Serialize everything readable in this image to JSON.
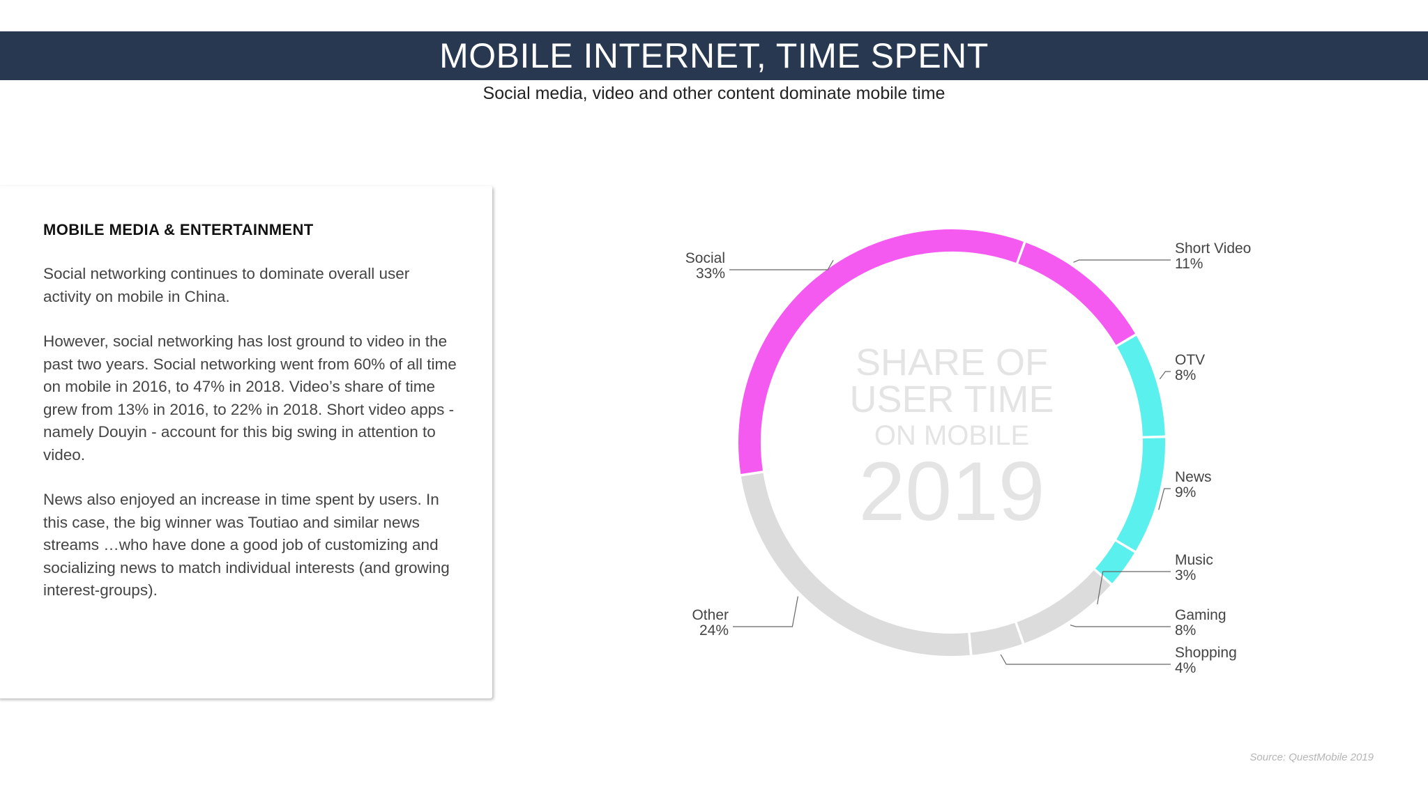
{
  "header": {
    "title": "MOBILE INTERNET, TIME SPENT",
    "subtitle": "Social media, video and other content dominate mobile time"
  },
  "card": {
    "heading": "MOBILE MEDIA & ENTERTAINMENT",
    "paragraphs": [
      "Social networking continues to dominate overall user activity on mobile in China.",
      "However, social networking has lost ground to video in the past two years. Social networking went from 60% of all time on mobile in 2016, to 47% in 2018. Video’s share of time grew from 13% in 2016, to 22% in 2018. Short video apps - namely Douyin - account for this big swing in attention to video.",
      "News also enjoyed an increase in time spent by users. In this case, the big winner was Toutiao and similar news streams …who have done a good job of customizing and socializing news to match individual interests (and growing interest-groups)."
    ]
  },
  "chart_center": {
    "line1": "SHARE OF",
    "line2": "USER TIME",
    "line3": "ON MOBILE",
    "year": "2019"
  },
  "source": "Source: QuestMobile 2019",
  "colors": {
    "header_bg": "#283850",
    "social": "#f55af0",
    "video": "#5af0ee",
    "other": "#dcdcdc"
  },
  "chart_data": {
    "type": "pie",
    "variant": "donut",
    "title": "SHARE OF USER TIME ON MOBILE 2019",
    "unit": "%",
    "slices": [
      {
        "label": "Social",
        "value": 33,
        "display": "33%",
        "color": "#f55af0"
      },
      {
        "label": "Short Video",
        "value": 11,
        "display": "11%",
        "color": "#f55af0"
      },
      {
        "label": "OTV",
        "value": 8,
        "display": "8%",
        "color": "#5af0ee"
      },
      {
        "label": "News",
        "value": 9,
        "display": "9%",
        "color": "#5af0ee"
      },
      {
        "label": "Music",
        "value": 3,
        "display": "3%",
        "color": "#5af0ee"
      },
      {
        "label": "Gaming",
        "value": 8,
        "display": "8%",
        "color": "#dcdcdc"
      },
      {
        "label": "Shopping",
        "value": 4,
        "display": "4%",
        "color": "#dcdcdc"
      },
      {
        "label": "Other",
        "value": 24,
        "display": "24%",
        "color": "#dcdcdc"
      }
    ]
  }
}
